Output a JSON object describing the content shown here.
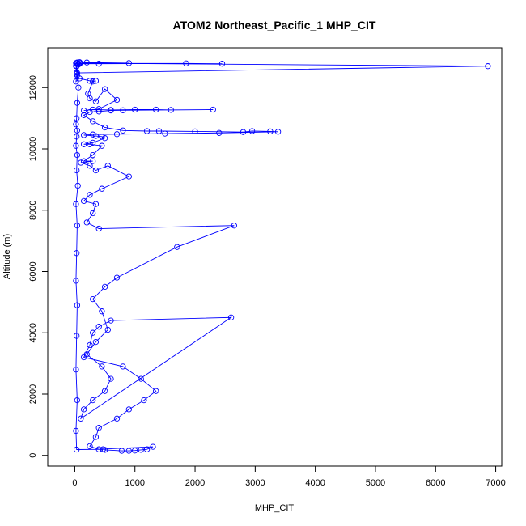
{
  "chart_data": {
    "type": "line",
    "title": "ATOM2 Northeast_Pacific_1 MHP_CIT",
    "xlabel": "MHP_CIT",
    "ylabel": "Altitude (m)",
    "xlim": [
      -450,
      7100
    ],
    "ylim": [
      -350,
      13300
    ],
    "x_ticks": [
      0,
      1000,
      2000,
      3000,
      4000,
      5000,
      6000,
      7000
    ],
    "y_ticks": [
      0,
      2000,
      4000,
      6000,
      8000,
      10000,
      12000
    ],
    "grid": false,
    "legend": "none",
    "series": [
      {
        "color": "#0000ff",
        "marker": "open-circle",
        "x": [
          30,
          20,
          60,
          20,
          40,
          80,
          30,
          90,
          200,
          900,
          60,
          400,
          1850,
          2450,
          80,
          6870,
          40,
          20,
          80,
          250,
          350,
          300,
          220,
          250,
          350,
          500,
          700,
          400,
          150,
          300,
          600,
          1000,
          1350,
          1600,
          2300,
          800,
          600,
          400,
          250,
          150,
          300,
          500,
          800,
          1200,
          1400,
          2000,
          2800,
          2950,
          3250,
          3380,
          2400,
          1500,
          700,
          300,
          150,
          350,
          450,
          500,
          300,
          150,
          250,
          450,
          300,
          150,
          300,
          100,
          250,
          350,
          550,
          900,
          450,
          250,
          150,
          350,
          300,
          200,
          400,
          2650,
          1700,
          700,
          500,
          300,
          450,
          550,
          350,
          200,
          450,
          600,
          500,
          300,
          150,
          100,
          2600,
          600,
          400,
          300,
          250,
          150,
          800,
          1100,
          1350,
          1150,
          900,
          700,
          400,
          350,
          250,
          400,
          1300,
          1200,
          1100,
          1000,
          900,
          780,
          500,
          470,
          30,
          20,
          40,
          20,
          30,
          40,
          20,
          30,
          40,
          20,
          50,
          30,
          40,
          20,
          30,
          40,
          20,
          30,
          40,
          60,
          40,
          30,
          40
        ],
        "y": [
          12500,
          12700,
          12750,
          12800,
          12820,
          12830,
          12450,
          12800,
          12820,
          12800,
          12780,
          12780,
          12790,
          12780,
          12800,
          12700,
          12480,
          12200,
          12300,
          12220,
          12220,
          12200,
          11800,
          11650,
          11550,
          11950,
          11600,
          11300,
          11250,
          11280,
          11270,
          11280,
          11280,
          11270,
          11280,
          11260,
          11250,
          11220,
          11200,
          11100,
          10900,
          10700,
          10600,
          10580,
          10580,
          10570,
          10550,
          10580,
          10570,
          10560,
          10520,
          10500,
          10480,
          10470,
          10450,
          10420,
          10400,
          10350,
          10200,
          10150,
          10150,
          10100,
          9800,
          9600,
          9600,
          9550,
          9450,
          9300,
          9450,
          9100,
          8700,
          8500,
          8300,
          8200,
          7900,
          7600,
          7400,
          7500,
          6800,
          5800,
          5500,
          5100,
          4700,
          4100,
          3700,
          3300,
          2900,
          2500,
          2100,
          1800,
          1500,
          1200,
          4500,
          4400,
          4200,
          4000,
          3600,
          3200,
          2900,
          2500,
          2100,
          1800,
          1500,
          1200,
          900,
          600,
          300,
          200,
          280,
          200,
          180,
          160,
          150,
          150,
          180,
          200,
          190,
          800,
          1800,
          2800,
          3900,
          4900,
          5700,
          6600,
          7500,
          8200,
          8800,
          9300,
          9800,
          10100,
          10400,
          10600,
          10800,
          11000,
          11500,
          12000,
          12400,
          12700,
          12800
        ]
      }
    ]
  }
}
